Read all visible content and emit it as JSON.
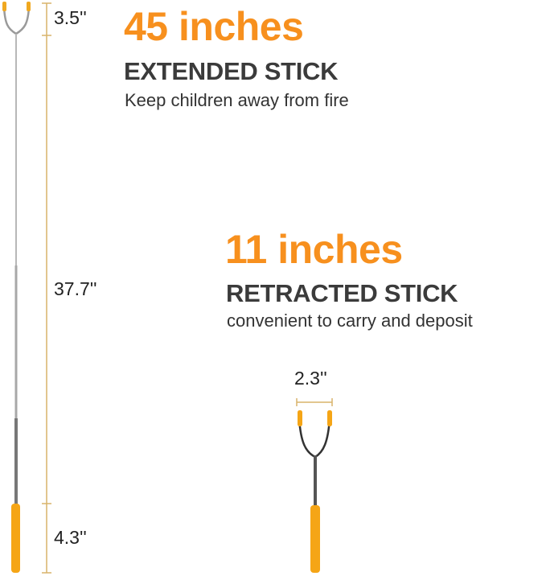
{
  "colors": {
    "accent": "#f7901e",
    "dimension_line": "#d9b36a",
    "handle": "#f5a516",
    "heading": "#3b3b3b"
  },
  "extended": {
    "length": "45 inches",
    "title": "EXTENDED STICK",
    "description": "Keep children away from fire",
    "dimensions": {
      "fork": "3.5''",
      "shaft": "37.7''",
      "handle": "4.3''"
    }
  },
  "retracted": {
    "length": "11 inches",
    "title": "RETRACTED STICK",
    "description": "convenient to carry and deposit",
    "fork_width": "2.3''"
  }
}
